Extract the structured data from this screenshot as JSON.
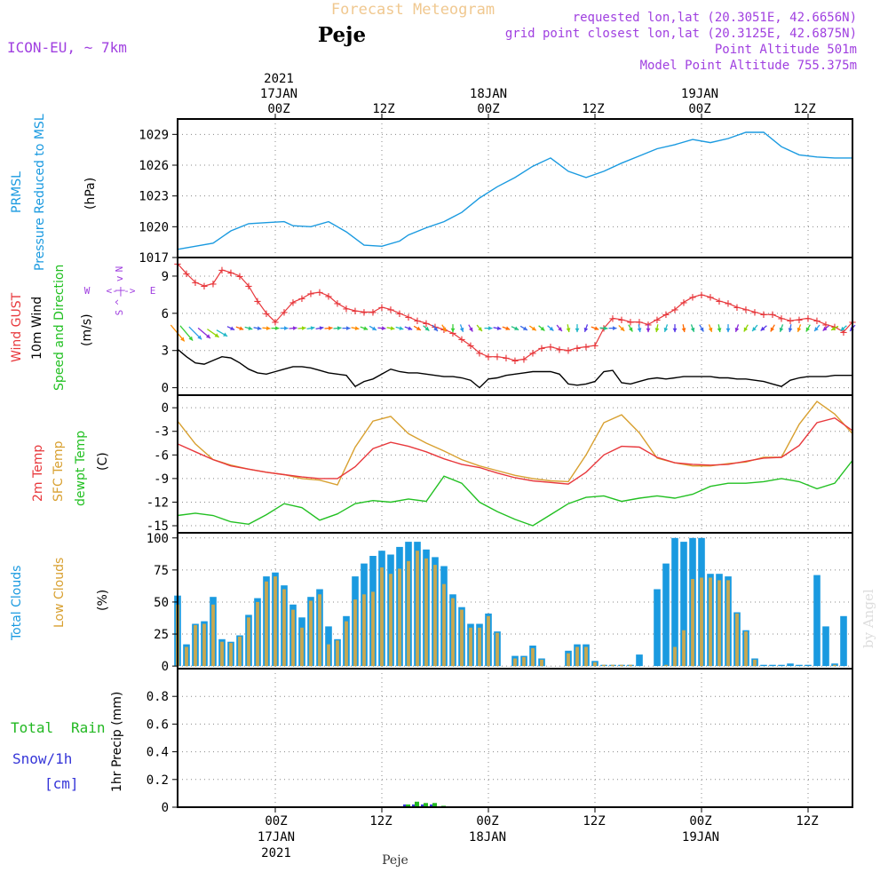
{
  "header": {
    "title": "Forecast Meteogram",
    "station": "Peje",
    "model": "ICON-EU, ~ 7km",
    "requested": "requested lon,lat (20.3051E, 42.6656N)",
    "gridpoint": "grid point closest lon,lat (20.3125E, 42.6875N)",
    "point_alt": "Point Altitude 501m",
    "model_alt": "Model Point Altitude 755.375m",
    "footer_station": "Peje",
    "watermark": "by Angel"
  },
  "colors": {
    "pressure": "#1a9ae0",
    "gust": "#e8383c",
    "wind": "#000000",
    "t2m": "#e8383c",
    "sfc": "#d8a030",
    "dewpt": "#22c022",
    "total_cloud": "#1a9ae0",
    "low_cloud": "#c8a850",
    "rain": "#22b822",
    "snow": "#3535d8",
    "title": "#f0c890",
    "meta": "#a040e0"
  },
  "time_axis": {
    "top_year": "2021",
    "top": [
      {
        "h": 0,
        "lines": [
          "17JAN",
          "00Z"
        ]
      },
      {
        "h": 12,
        "lines": [
          "12Z"
        ]
      },
      {
        "h": 24,
        "lines": [
          "18JAN",
          "00Z"
        ]
      },
      {
        "h": 36,
        "lines": [
          "12Z"
        ]
      },
      {
        "h": 48,
        "lines": [
          "19JAN",
          "00Z"
        ]
      },
      {
        "h": 60,
        "lines": [
          "12Z"
        ]
      }
    ],
    "bottom": [
      {
        "h": 0,
        "lines": [
          "00Z",
          "17JAN",
          "2021"
        ]
      },
      {
        "h": 12,
        "lines": [
          "12Z"
        ]
      },
      {
        "h": 24,
        "lines": [
          "00Z",
          "18JAN"
        ]
      },
      {
        "h": 36,
        "lines": [
          "12Z"
        ]
      },
      {
        "h": 48,
        "lines": [
          "00Z",
          "19JAN"
        ]
      },
      {
        "h": 60,
        "lines": [
          "12Z"
        ]
      }
    ],
    "range_hours": [
      -11,
      65
    ]
  },
  "labels": {
    "pressure": [
      "PRMSL",
      "Pressure Reduced to MSL",
      "(hPa)"
    ],
    "wind": [
      "Wind GUST",
      "10m Wind",
      "Speed and Direction",
      "(m/s)"
    ],
    "compass": {
      "n": "N",
      "s": "S",
      "w": "W",
      "e": "E",
      "ns": "^ | v",
      "we": "<-|->"
    },
    "temp": [
      "2m Temp",
      "SFC Temp",
      "dewpt Temp",
      "(C)"
    ],
    "cloud": [
      "Total Clouds",
      "Low Clouds",
      "(%)"
    ],
    "precip": [
      "Total",
      "Rain",
      "Snow/1h",
      "[cm]",
      "1hr Precip (mm)"
    ]
  },
  "chart_data": [
    {
      "type": "line",
      "title": "PRMSL Pressure Reduced to MSL",
      "ylabel": "(hPa)",
      "ylim": [
        1017,
        1030.5
      ],
      "yticks": [
        1017,
        1020,
        1023,
        1026,
        1029
      ],
      "x_hours": [
        -11,
        -9,
        -7,
        -5,
        -3,
        -1,
        1,
        2,
        4,
        6,
        8,
        10,
        12,
        14,
        15,
        17,
        19,
        21,
        23,
        25,
        27,
        29,
        31,
        33,
        35,
        37,
        39,
        41,
        43,
        45,
        47,
        49,
        51,
        53,
        55,
        57,
        59,
        61,
        63,
        65
      ],
      "series": [
        {
          "name": "PRMSL",
          "values": [
            1017.8,
            1018.1,
            1018.4,
            1019.6,
            1020.3,
            1020.4,
            1020.5,
            1020.1,
            1020.0,
            1020.5,
            1019.5,
            1018.2,
            1018.1,
            1018.6,
            1019.2,
            1019.9,
            1020.5,
            1021.4,
            1022.8,
            1023.9,
            1024.8,
            1025.9,
            1026.7,
            1025.4,
            1024.8,
            1025.4,
            1026.2,
            1026.9,
            1027.6,
            1028.0,
            1028.5,
            1028.2,
            1028.6,
            1029.2,
            1029.2,
            1027.8,
            1027.0,
            1026.8,
            1026.7,
            1026.7
          ]
        }
      ]
    },
    {
      "type": "line",
      "title": "Wind GUST / 10m Wind Speed and Direction",
      "ylabel": "(m/s)",
      "ylim": [
        -0.6,
        10.5
      ],
      "yticks": [
        0,
        3,
        6,
        9
      ],
      "x_hours": [
        -11,
        -10,
        -9,
        -8,
        -7,
        -6,
        -5,
        -4,
        -3,
        -2,
        -1,
        0,
        1,
        2,
        3,
        4,
        5,
        6,
        7,
        8,
        9,
        10,
        11,
        12,
        13,
        14,
        15,
        16,
        17,
        18,
        19,
        20,
        21,
        22,
        23,
        24,
        25,
        26,
        27,
        28,
        29,
        30,
        31,
        32,
        33,
        34,
        35,
        36,
        37,
        38,
        39,
        40,
        41,
        42,
        43,
        44,
        45,
        46,
        47,
        48,
        49,
        50,
        51,
        52,
        53,
        54,
        55,
        56,
        57,
        58,
        59,
        60,
        61,
        62,
        63,
        64,
        65
      ],
      "series": [
        {
          "name": "Wind GUST",
          "values": [
            10.0,
            9.2,
            8.5,
            8.2,
            8.4,
            9.5,
            9.3,
            9.0,
            8.2,
            7.0,
            6.0,
            5.3,
            6.1,
            6.9,
            7.2,
            7.6,
            7.7,
            7.4,
            6.8,
            6.4,
            6.2,
            6.1,
            6.1,
            6.5,
            6.3,
            6.0,
            5.7,
            5.4,
            5.2,
            4.9,
            4.7,
            4.4,
            3.9,
            3.4,
            2.8,
            2.5,
            2.5,
            2.4,
            2.2,
            2.3,
            2.8,
            3.2,
            3.3,
            3.1,
            3.0,
            3.2,
            3.3,
            3.4,
            4.8,
            5.6,
            5.5,
            5.3,
            5.3,
            5.1,
            5.5,
            5.9,
            6.3,
            6.9,
            7.3,
            7.5,
            7.3,
            7.0,
            6.8,
            6.5,
            6.3,
            6.1,
            5.9,
            5.9,
            5.6,
            5.4,
            5.5,
            5.6,
            5.4,
            5.1,
            4.9,
            4.5,
            5.3
          ]
        },
        {
          "name": "10m Wind",
          "values": [
            3.1,
            2.5,
            2.0,
            1.9,
            2.2,
            2.5,
            2.4,
            2.0,
            1.5,
            1.2,
            1.1,
            1.3,
            1.5,
            1.7,
            1.7,
            1.6,
            1.4,
            1.2,
            1.1,
            1.0,
            0.1,
            0.5,
            0.7,
            1.1,
            1.5,
            1.3,
            1.2,
            1.2,
            1.1,
            1.0,
            0.9,
            0.9,
            0.8,
            0.6,
            0.0,
            0.7,
            0.8,
            1.0,
            1.1,
            1.2,
            1.3,
            1.3,
            1.3,
            1.1,
            0.3,
            0.2,
            0.3,
            0.5,
            1.3,
            1.4,
            0.4,
            0.3,
            0.5,
            0.7,
            0.8,
            0.7,
            0.8,
            0.9,
            0.9,
            0.9,
            0.9,
            0.8,
            0.8,
            0.7,
            0.7,
            0.6,
            0.5,
            0.3,
            0.1,
            0.6,
            0.8,
            0.9,
            0.9,
            0.9,
            1.0,
            1.0,
            1.0
          ]
        }
      ],
      "wind_dir_deg": [
        140,
        140,
        135,
        130,
        125,
        120,
        115,
        110,
        105,
        100,
        95,
        90,
        90,
        85,
        85,
        80,
        80,
        85,
        85,
        90,
        100,
        110,
        120,
        95,
        100,
        105,
        110,
        120,
        130,
        140,
        150,
        180,
        160,
        150,
        140,
        90,
        100,
        110,
        115,
        120,
        125,
        130,
        130,
        140,
        170,
        180,
        200,
        110,
        95,
        90,
        135,
        150,
        170,
        180,
        190,
        200,
        180,
        170,
        160,
        150,
        160,
        170,
        180,
        200,
        210,
        220,
        230,
        210,
        200,
        190,
        200,
        210,
        220,
        230,
        240,
        230,
        220
      ]
    },
    {
      "type": "line",
      "title": "2m Temp / SFC Temp / dewpt Temp",
      "ylabel": "(C)",
      "ylim": [
        -15.9,
        1.6
      ],
      "yticks": [
        0,
        -3,
        -6,
        -9,
        -12,
        -15
      ],
      "x_hours": [
        -11,
        -9,
        -7,
        -5,
        -3,
        -1,
        1,
        3,
        5,
        7,
        9,
        11,
        13,
        15,
        17,
        19,
        21,
        23,
        25,
        27,
        29,
        31,
        33,
        35,
        37,
        39,
        41,
        43,
        45,
        47,
        49,
        51,
        53,
        55,
        57,
        59,
        61,
        63,
        65
      ],
      "series": [
        {
          "name": "2m Temp",
          "values": [
            -4.6,
            -5.6,
            -6.6,
            -7.4,
            -7.8,
            -8.2,
            -8.5,
            -8.8,
            -9.0,
            -9.0,
            -7.5,
            -5.2,
            -4.4,
            -4.9,
            -5.6,
            -6.5,
            -7.2,
            -7.6,
            -8.3,
            -8.9,
            -9.3,
            -9.5,
            -9.7,
            -8.2,
            -6.0,
            -4.9,
            -5.0,
            -6.3,
            -7.0,
            -7.2,
            -7.3,
            -7.2,
            -6.8,
            -6.4,
            -6.3,
            -4.8,
            -1.9,
            -1.3,
            -2.9
          ]
        },
        {
          "name": "SFC Temp",
          "values": [
            -1.7,
            -4.6,
            -6.6,
            -7.3,
            -7.8,
            -8.2,
            -8.5,
            -9.0,
            -9.2,
            -9.8,
            -5.0,
            -1.7,
            -1.1,
            -3.3,
            -4.5,
            -5.5,
            -6.6,
            -7.4,
            -8.0,
            -8.6,
            -9.0,
            -9.3,
            -9.4,
            -6.0,
            -1.9,
            -0.9,
            -3.2,
            -6.4,
            -7.0,
            -7.4,
            -7.4,
            -7.1,
            -6.9,
            -6.3,
            -6.3,
            -2.1,
            0.8,
            -0.8,
            -3.3
          ]
        },
        {
          "name": "dewpt Temp",
          "values": [
            -13.7,
            -13.4,
            -13.7,
            -14.5,
            -14.8,
            -13.6,
            -12.2,
            -12.7,
            -14.3,
            -13.5,
            -12.2,
            -11.8,
            -12.0,
            -11.6,
            -11.9,
            -8.7,
            -9.6,
            -12.0,
            -13.2,
            -14.2,
            -15.0,
            -13.6,
            -12.2,
            -11.4,
            -11.2,
            -11.9,
            -11.5,
            -11.2,
            -11.5,
            -11.0,
            -10.0,
            -9.6,
            -9.6,
            -9.4,
            -9.0,
            -9.4,
            -10.3,
            -9.6,
            -6.7
          ]
        }
      ]
    },
    {
      "type": "bar",
      "title": "Total Clouds / Low Clouds",
      "ylabel": "(%)",
      "ylim": [
        -2,
        104
      ],
      "yticks": [
        0,
        25,
        50,
        75,
        100
      ],
      "x_hours": [
        -11,
        -10,
        -9,
        -8,
        -7,
        -6,
        -5,
        -4,
        -3,
        -2,
        -1,
        0,
        1,
        2,
        3,
        4,
        5,
        6,
        7,
        8,
        9,
        10,
        11,
        12,
        13,
        14,
        15,
        16,
        17,
        18,
        19,
        20,
        21,
        22,
        23,
        24,
        25,
        26,
        27,
        28,
        29,
        30,
        31,
        32,
        33,
        34,
        35,
        36,
        37,
        38,
        39,
        40,
        41,
        42,
        43,
        44,
        45,
        46,
        47,
        48,
        49,
        50,
        51,
        52,
        53,
        54,
        55,
        56,
        57,
        58,
        59,
        60,
        61,
        62,
        63,
        64,
        65
      ],
      "series": [
        {
          "name": "Total Clouds",
          "values": [
            55,
            17,
            33,
            35,
            54,
            21,
            19,
            24,
            40,
            53,
            70,
            73,
            63,
            48,
            38,
            54,
            60,
            31,
            21,
            39,
            70,
            80,
            86,
            90,
            87,
            93,
            97,
            97,
            91,
            85,
            78,
            56,
            46,
            33,
            33,
            41,
            27,
            0,
            8,
            8,
            16,
            6,
            0,
            0,
            12,
            17,
            17,
            4,
            1,
            1,
            1,
            1,
            9,
            0,
            60,
            80,
            100,
            97,
            100,
            100,
            72,
            72,
            70,
            42,
            28,
            6,
            1,
            1,
            1,
            2,
            1,
            1,
            71,
            31,
            2,
            39,
            0
          ]
        },
        {
          "name": "Low Clouds",
          "values": [
            48,
            15,
            32,
            33,
            48,
            19,
            18,
            23,
            38,
            50,
            66,
            70,
            60,
            44,
            30,
            51,
            56,
            17,
            20,
            35,
            52,
            56,
            58,
            77,
            72,
            76,
            82,
            90,
            84,
            79,
            64,
            53,
            44,
            30,
            30,
            39,
            26,
            0,
            6,
            7,
            14,
            5,
            0,
            0,
            10,
            15,
            15,
            3,
            1,
            1,
            1,
            1,
            0,
            0,
            0,
            1,
            15,
            28,
            68,
            69,
            69,
            67,
            67,
            41,
            27,
            5,
            0,
            0,
            0,
            0,
            0,
            0,
            0,
            0,
            1,
            0,
            0
          ]
        }
      ]
    },
    {
      "type": "bar",
      "title": "1hr Precip (mm)",
      "ylabel": "1hr Precip (mm)",
      "ylim": [
        0,
        1.0
      ],
      "yticks": [
        0,
        0.2,
        0.4,
        0.6,
        0.8
      ],
      "x_hours": [
        -6,
        0,
        15,
        16,
        17,
        18,
        19
      ],
      "series": [
        {
          "name": "Total Rain",
          "values": [
            0.005,
            0.005,
            0.02,
            0.04,
            0.03,
            0.03,
            0.01
          ]
        },
        {
          "name": "Snow/1h",
          "values": [
            0,
            0,
            0.02,
            0.02,
            0.02,
            0.02,
            0
          ]
        }
      ]
    }
  ]
}
